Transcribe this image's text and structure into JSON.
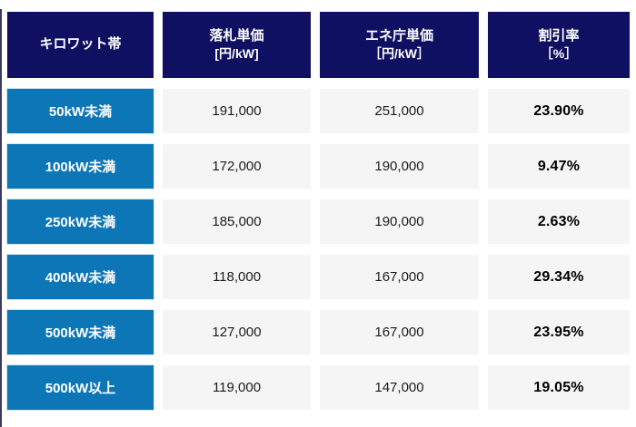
{
  "colors": {
    "header_bg": "#101062",
    "band_bg": "#0d76b6",
    "cell_bg": "#f5f5f6",
    "header_text": "#ffffff",
    "value_text": "#1b1b1b",
    "percent_text": "#000000",
    "edge_line": "#3a3a5e"
  },
  "header": {
    "col1": {
      "title": "キロワット帯"
    },
    "col2": {
      "title": "落札単価",
      "unit": "[円/kW]"
    },
    "col3": {
      "title": "エネ庁単価",
      "unit": "［円/kW］"
    },
    "col4": {
      "title": "割引率",
      "unit": "［%］"
    }
  },
  "rows": [
    {
      "band": "50kW未満",
      "bid": "191,000",
      "agency": "251,000",
      "discount": "23.90%"
    },
    {
      "band": "100kW未満",
      "bid": "172,000",
      "agency": "190,000",
      "discount": "9.47%"
    },
    {
      "band": "250kW未満",
      "bid": "185,000",
      "agency": "190,000",
      "discount": "2.63%"
    },
    {
      "band": "400kW未満",
      "bid": "118,000",
      "agency": "167,000",
      "discount": "29.34%"
    },
    {
      "band": "500kW未満",
      "bid": "127,000",
      "agency": "167,000",
      "discount": "23.95%"
    },
    {
      "band": "500kW以上",
      "bid": "119,000",
      "agency": "147,000",
      "discount": "19.05%"
    }
  ],
  "chart_data": {
    "type": "table",
    "title": "",
    "columns": [
      "キロワット帯",
      "落札単価 [円/kW]",
      "エネ庁単価 [円/kW]",
      "割引率 [%]"
    ],
    "rows": [
      [
        "50kW未満",
        191000,
        251000,
        "23.90%"
      ],
      [
        "100kW未満",
        172000,
        190000,
        "9.47%"
      ],
      [
        "250kW未満",
        185000,
        190000,
        "2.63%"
      ],
      [
        "400kW未満",
        118000,
        167000,
        "29.34%"
      ],
      [
        "500kW未満",
        127000,
        167000,
        "23.95%"
      ],
      [
        "500kW以上",
        119000,
        147000,
        "19.05%"
      ]
    ]
  }
}
